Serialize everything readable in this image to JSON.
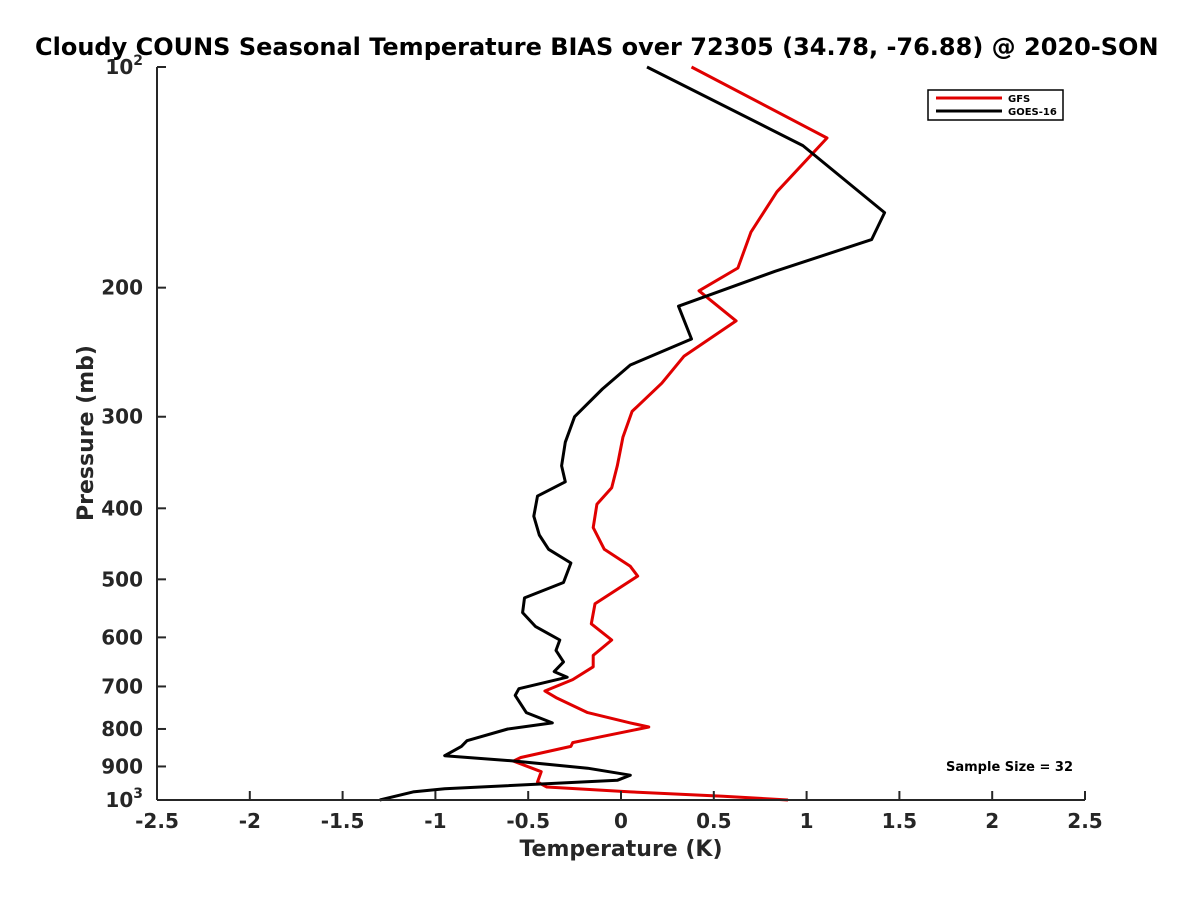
{
  "chart_data": {
    "type": "line",
    "title": "Cloudy COUNS Seasonal Temperature BIAS over 72305 (34.78, -76.88) @ 2020-SON",
    "xlabel": "Temperature (K)",
    "ylabel": "Pressure (mb)",
    "xlim": [
      -2.5,
      2.5
    ],
    "ylim": [
      100,
      1000
    ],
    "y_scale": "log",
    "y_reversed": true,
    "x_ticks": [
      "-2.5",
      "-2",
      "-1.5",
      "-1",
      "-0.5",
      "0",
      "0.5",
      "1",
      "1.5",
      "2",
      "2.5"
    ],
    "y_ticks": [
      {
        "value": 100,
        "base": "10",
        "exp": "2"
      },
      {
        "value": 200,
        "base": "200",
        "exp": ""
      },
      {
        "value": 300,
        "base": "300",
        "exp": ""
      },
      {
        "value": 400,
        "base": "400",
        "exp": ""
      },
      {
        "value": 500,
        "base": "500",
        "exp": ""
      },
      {
        "value": 600,
        "base": "600",
        "exp": ""
      },
      {
        "value": 700,
        "base": "700",
        "exp": ""
      },
      {
        "value": 800,
        "base": "800",
        "exp": ""
      },
      {
        "value": 900,
        "base": "900",
        "exp": ""
      },
      {
        "value": 1000,
        "base": "10",
        "exp": "3"
      }
    ],
    "legend_position": "top-right",
    "grid": false,
    "annotation": "Sample Size = 32",
    "series": [
      {
        "name": "GFS",
        "color": "#e00000",
        "points": [
          [
            0.38,
            100
          ],
          [
            1.11,
            125
          ],
          [
            0.84,
            148
          ],
          [
            0.7,
            168
          ],
          [
            0.63,
            188
          ],
          [
            0.42,
            202
          ],
          [
            0.62,
            222
          ],
          [
            0.34,
            248
          ],
          [
            0.22,
            270
          ],
          [
            0.06,
            295
          ],
          [
            0.01,
            320
          ],
          [
            -0.02,
            350
          ],
          [
            -0.05,
            375
          ],
          [
            -0.13,
            395
          ],
          [
            -0.15,
            425
          ],
          [
            -0.09,
            455
          ],
          [
            0.05,
            480
          ],
          [
            0.09,
            495
          ],
          [
            -0.14,
            540
          ],
          [
            -0.16,
            575
          ],
          [
            -0.05,
            605
          ],
          [
            -0.15,
            635
          ],
          [
            -0.15,
            658
          ],
          [
            -0.26,
            685
          ],
          [
            -0.41,
            710
          ],
          [
            -0.35,
            725
          ],
          [
            -0.18,
            760
          ],
          [
            0.05,
            785
          ],
          [
            0.15,
            795
          ],
          [
            -0.11,
            820
          ],
          [
            -0.26,
            835
          ],
          [
            -0.27,
            845
          ],
          [
            -0.54,
            875
          ],
          [
            -0.58,
            885
          ],
          [
            -0.43,
            915
          ],
          [
            -0.45,
            945
          ],
          [
            -0.4,
            960
          ],
          [
            0.05,
            975
          ],
          [
            0.55,
            988
          ],
          [
            0.9,
            1000
          ]
        ]
      },
      {
        "name": "GOES-16",
        "color": "#000000",
        "points": [
          [
            0.14,
            100
          ],
          [
            0.98,
            128
          ],
          [
            1.42,
            158
          ],
          [
            1.35,
            172
          ],
          [
            0.83,
            190
          ],
          [
            0.31,
            212
          ],
          [
            0.38,
            235
          ],
          [
            0.05,
            255
          ],
          [
            -0.1,
            275
          ],
          [
            -0.25,
            300
          ],
          [
            -0.3,
            325
          ],
          [
            -0.32,
            350
          ],
          [
            -0.3,
            368
          ],
          [
            -0.45,
            385
          ],
          [
            -0.47,
            410
          ],
          [
            -0.44,
            435
          ],
          [
            -0.39,
            455
          ],
          [
            -0.27,
            475
          ],
          [
            -0.31,
            505
          ],
          [
            -0.52,
            530
          ],
          [
            -0.53,
            555
          ],
          [
            -0.46,
            580
          ],
          [
            -0.33,
            605
          ],
          [
            -0.35,
            625
          ],
          [
            -0.31,
            648
          ],
          [
            -0.36,
            668
          ],
          [
            -0.29,
            680
          ],
          [
            -0.55,
            705
          ],
          [
            -0.57,
            720
          ],
          [
            -0.51,
            760
          ],
          [
            -0.37,
            785
          ],
          [
            -0.61,
            800
          ],
          [
            -0.83,
            830
          ],
          [
            -0.86,
            845
          ],
          [
            -0.95,
            870
          ],
          [
            -0.57,
            885
          ],
          [
            -0.18,
            905
          ],
          [
            0.05,
            925
          ],
          [
            -0.02,
            940
          ],
          [
            -0.95,
            965
          ],
          [
            -1.12,
            975
          ],
          [
            -1.3,
            1000
          ]
        ]
      }
    ]
  }
}
